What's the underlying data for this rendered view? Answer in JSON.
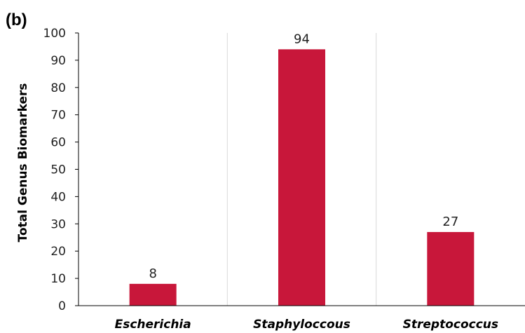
{
  "panel_label": "(b)",
  "chart_data": {
    "type": "bar",
    "title": "",
    "xlabel": "",
    "ylabel": "Total Genus Biomarkers",
    "categories": [
      "Escherichia",
      "Staphyloccous",
      "Streptococcus"
    ],
    "values": [
      8,
      94,
      27
    ],
    "data_labels": [
      "8",
      "94",
      "27"
    ],
    "ylim": [
      0,
      100
    ],
    "yticks": [
      0,
      10,
      20,
      30,
      40,
      50,
      60,
      70,
      80,
      90,
      100
    ],
    "ytick_labels": [
      "0",
      "10",
      "20",
      "30",
      "40",
      "50",
      "60",
      "70",
      "80",
      "90",
      "100"
    ],
    "grid": "vertical separators between categories",
    "legend": "none",
    "bar_color": "#c8173a"
  }
}
